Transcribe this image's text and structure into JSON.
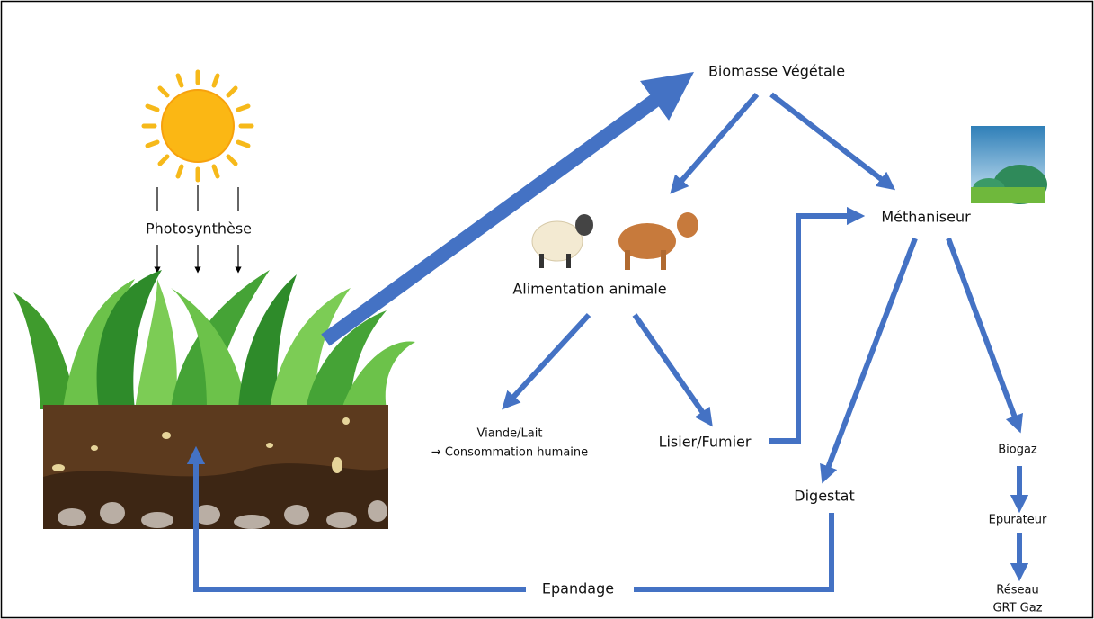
{
  "nodes": [
    {
      "label": "Biomasse Végétale"
    },
    {
      "label": "Photosynthèse"
    },
    {
      "label": "Alimentation animale"
    },
    {
      "label": "Méthaniseur"
    },
    {
      "lines": [
        "Viande/Lait",
        "→ Consommation humaine"
      ]
    },
    {
      "label": "Lisier/Fumier"
    },
    {
      "label": "Biogaz"
    },
    {
      "label": "Digestat"
    },
    {
      "label": "Epurateur"
    },
    {
      "label": "Epandage"
    },
    {
      "lines": [
        "Réseau",
        "GRT Gaz"
      ]
    }
  ]
}
